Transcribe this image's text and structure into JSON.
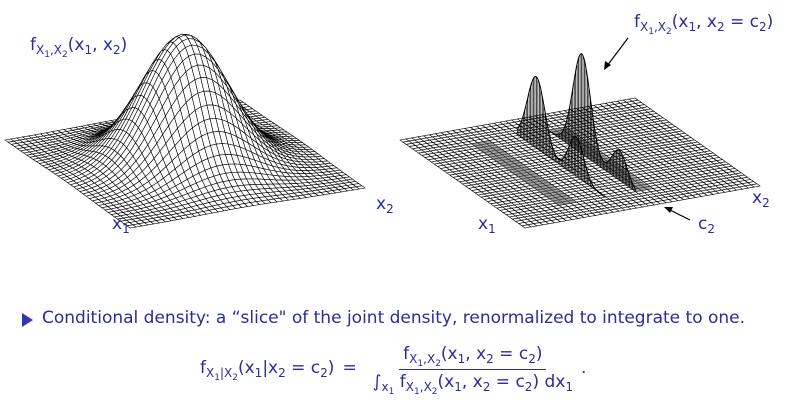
{
  "plots": [
    {
      "function_label": [
        [
          "f",
          0
        ],
        [
          "X",
          1
        ],
        [
          "1",
          2
        ],
        [
          ",X",
          1
        ],
        [
          "2",
          2
        ],
        [
          "(x",
          0
        ],
        [
          "1",
          1
        ],
        [
          ", x",
          0
        ],
        [
          "2",
          1
        ],
        [
          ")",
          0
        ]
      ],
      "x1_label": [
        [
          "x",
          0
        ],
        [
          "1",
          1
        ]
      ],
      "x2_label": [
        [
          "x",
          0
        ],
        [
          "2",
          1
        ]
      ]
    },
    {
      "function_label": [
        [
          "f",
          0
        ],
        [
          "X",
          1
        ],
        [
          "1",
          2
        ],
        [
          ",X",
          1
        ],
        [
          "2",
          2
        ],
        [
          "(x",
          0
        ],
        [
          "1",
          1
        ],
        [
          ", x",
          0
        ],
        [
          "2",
          1
        ],
        [
          " = c",
          0
        ],
        [
          "2",
          1
        ],
        [
          ")",
          0
        ]
      ],
      "x1_label": [
        [
          "x",
          0
        ],
        [
          "1",
          1
        ]
      ],
      "x2_label": [
        [
          "x",
          0
        ],
        [
          "2",
          1
        ]
      ],
      "c2_label": [
        [
          "c",
          0
        ],
        [
          "2",
          1
        ]
      ]
    }
  ],
  "bullet": "Conditional density: a “slice\" of the joint density, renormalized to integrate to one.",
  "equation": {
    "lhs": [
      [
        "f",
        0
      ],
      [
        "X",
        1
      ],
      [
        "1",
        2
      ],
      [
        "|X",
        1
      ],
      [
        "2",
        2
      ],
      [
        "(x",
        0
      ],
      [
        "1",
        1
      ],
      [
        "|x",
        0
      ],
      [
        "2",
        1
      ],
      [
        " = c",
        0
      ],
      [
        "2",
        1
      ],
      [
        ")",
        0
      ]
    ],
    "equals": "=",
    "numerator": [
      [
        "f",
        0
      ],
      [
        "X",
        1
      ],
      [
        "1",
        2
      ],
      [
        ",X",
        1
      ],
      [
        "2",
        2
      ],
      [
        "(x",
        0
      ],
      [
        "1",
        1
      ],
      [
        ", x",
        0
      ],
      [
        "2",
        1
      ],
      [
        " = c",
        0
      ],
      [
        "2",
        1
      ],
      [
        ")",
        0
      ]
    ],
    "denominator": [
      [
        "∫",
        0
      ],
      [
        "x",
        1
      ],
      [
        "1",
        2
      ],
      [
        " f",
        0
      ],
      [
        "X",
        1
      ],
      [
        "1",
        2
      ],
      [
        ",X",
        1
      ],
      [
        "2",
        2
      ],
      [
        "(x",
        0
      ],
      [
        "1",
        1
      ],
      [
        ", x",
        0
      ],
      [
        "2",
        1
      ],
      [
        " = c",
        0
      ],
      [
        "2",
        1
      ],
      [
        ") dx",
        0
      ],
      [
        "1",
        1
      ]
    ],
    "end": "."
  }
}
